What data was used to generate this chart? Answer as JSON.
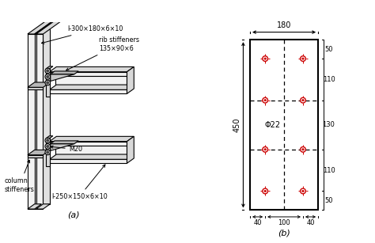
{
  "fig_width": 4.74,
  "fig_height": 3.07,
  "dpi": 100,
  "bg_color": "#ffffff",
  "label_a": "(a)",
  "label_b": "(b)",
  "line_color": "#000000",
  "face_light": "#f2f2f2",
  "face_mid": "#d8d8d8",
  "face_dark": "#b8b8b8",
  "panel_b": {
    "bolt_color": "#cc0000",
    "phi_label": "Φ22"
  }
}
